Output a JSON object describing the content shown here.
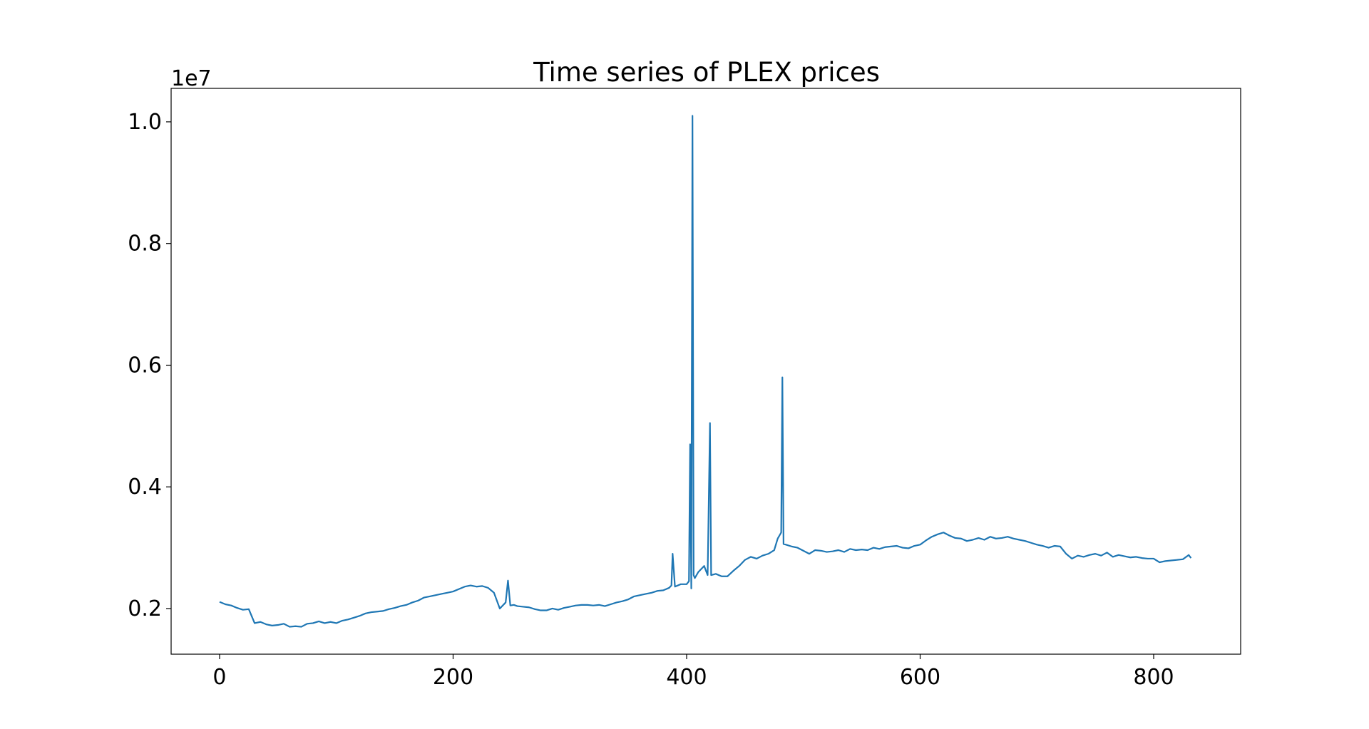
{
  "chart_data": {
    "type": "line",
    "title": "Time series of PLEX prices",
    "xlabel": "",
    "ylabel": "",
    "y_offset_label": "1e7",
    "xlim": [
      -41.5,
      874.5
    ],
    "ylim": [
      0.125,
      1.055
    ],
    "x_ticks": [
      0,
      200,
      400,
      600,
      800
    ],
    "x_tick_labels": [
      "0",
      "200",
      "400",
      "600",
      "800"
    ],
    "y_ticks": [
      0.2,
      0.4,
      0.6,
      0.8,
      1.0
    ],
    "y_tick_labels": [
      "0.2",
      "0.4",
      "0.6",
      "0.8",
      "1.0"
    ],
    "grid": false,
    "line_color": "#1f77b4",
    "series": [
      {
        "x": [
          0,
          5,
          10,
          15,
          20,
          25,
          30,
          35,
          40,
          45,
          50,
          55,
          60,
          65,
          70,
          75,
          80,
          85,
          90,
          95,
          100,
          105,
          110,
          115,
          120,
          125,
          130,
          135,
          140,
          145,
          150,
          155,
          160,
          165,
          170,
          175,
          180,
          185,
          190,
          195,
          200,
          205,
          210,
          215,
          220,
          225,
          230,
          235,
          240,
          245,
          247,
          249,
          252,
          255,
          260,
          265,
          270,
          275,
          280,
          285,
          290,
          295,
          300,
          305,
          310,
          315,
          320,
          325,
          330,
          335,
          340,
          345,
          350,
          355,
          360,
          365,
          370,
          375,
          380,
          385,
          387,
          388,
          390,
          395,
          400,
          402,
          403,
          404,
          405,
          406,
          407,
          410,
          415,
          418,
          420,
          421,
          425,
          430,
          435,
          440,
          445,
          450,
          455,
          460,
          465,
          470,
          475,
          478,
          481,
          482,
          483,
          485,
          490,
          495,
          500,
          505,
          510,
          515,
          520,
          525,
          530,
          535,
          540,
          545,
          550,
          555,
          560,
          565,
          570,
          575,
          580,
          585,
          590,
          595,
          600,
          605,
          610,
          615,
          620,
          625,
          630,
          635,
          640,
          645,
          650,
          655,
          660,
          665,
          670,
          675,
          680,
          685,
          690,
          695,
          700,
          705,
          710,
          715,
          720,
          725,
          730,
          735,
          740,
          745,
          750,
          755,
          760,
          765,
          770,
          775,
          780,
          785,
          790,
          795,
          800,
          805,
          810,
          815,
          820,
          825,
          830,
          832
        ],
        "y": [
          0.211,
          0.207,
          0.205,
          0.201,
          0.198,
          0.199,
          0.176,
          0.178,
          0.174,
          0.172,
          0.173,
          0.175,
          0.17,
          0.171,
          0.17,
          0.175,
          0.176,
          0.179,
          0.176,
          0.178,
          0.176,
          0.18,
          0.182,
          0.185,
          0.188,
          0.192,
          0.194,
          0.195,
          0.196,
          0.199,
          0.201,
          0.204,
          0.206,
          0.21,
          0.213,
          0.218,
          0.22,
          0.222,
          0.224,
          0.226,
          0.228,
          0.232,
          0.236,
          0.238,
          0.236,
          0.237,
          0.234,
          0.226,
          0.2,
          0.21,
          0.246,
          0.205,
          0.206,
          0.204,
          0.203,
          0.202,
          0.199,
          0.197,
          0.197,
          0.2,
          0.198,
          0.201,
          0.203,
          0.205,
          0.206,
          0.206,
          0.205,
          0.206,
          0.204,
          0.207,
          0.21,
          0.212,
          0.215,
          0.22,
          0.222,
          0.224,
          0.226,
          0.229,
          0.23,
          0.234,
          0.238,
          0.29,
          0.236,
          0.24,
          0.24,
          0.245,
          0.47,
          0.233,
          1.01,
          0.255,
          0.25,
          0.26,
          0.27,
          0.255,
          0.505,
          0.255,
          0.257,
          0.253,
          0.253,
          0.262,
          0.27,
          0.28,
          0.285,
          0.282,
          0.287,
          0.29,
          0.296,
          0.315,
          0.325,
          0.58,
          0.306,
          0.305,
          0.302,
          0.3,
          0.295,
          0.29,
          0.296,
          0.295,
          0.293,
          0.294,
          0.296,
          0.293,
          0.298,
          0.296,
          0.297,
          0.296,
          0.3,
          0.298,
          0.301,
          0.302,
          0.303,
          0.3,
          0.299,
          0.303,
          0.305,
          0.312,
          0.318,
          0.322,
          0.325,
          0.32,
          0.316,
          0.315,
          0.311,
          0.313,
          0.316,
          0.313,
          0.318,
          0.315,
          0.316,
          0.318,
          0.315,
          0.313,
          0.311,
          0.308,
          0.305,
          0.303,
          0.3,
          0.303,
          0.302,
          0.29,
          0.282,
          0.287,
          0.285,
          0.288,
          0.29,
          0.287,
          0.292,
          0.285,
          0.288,
          0.286,
          0.284,
          0.285,
          0.283,
          0.282,
          0.282,
          0.276,
          0.278,
          0.279,
          0.28,
          0.281,
          0.288,
          0.283
        ]
      }
    ]
  }
}
